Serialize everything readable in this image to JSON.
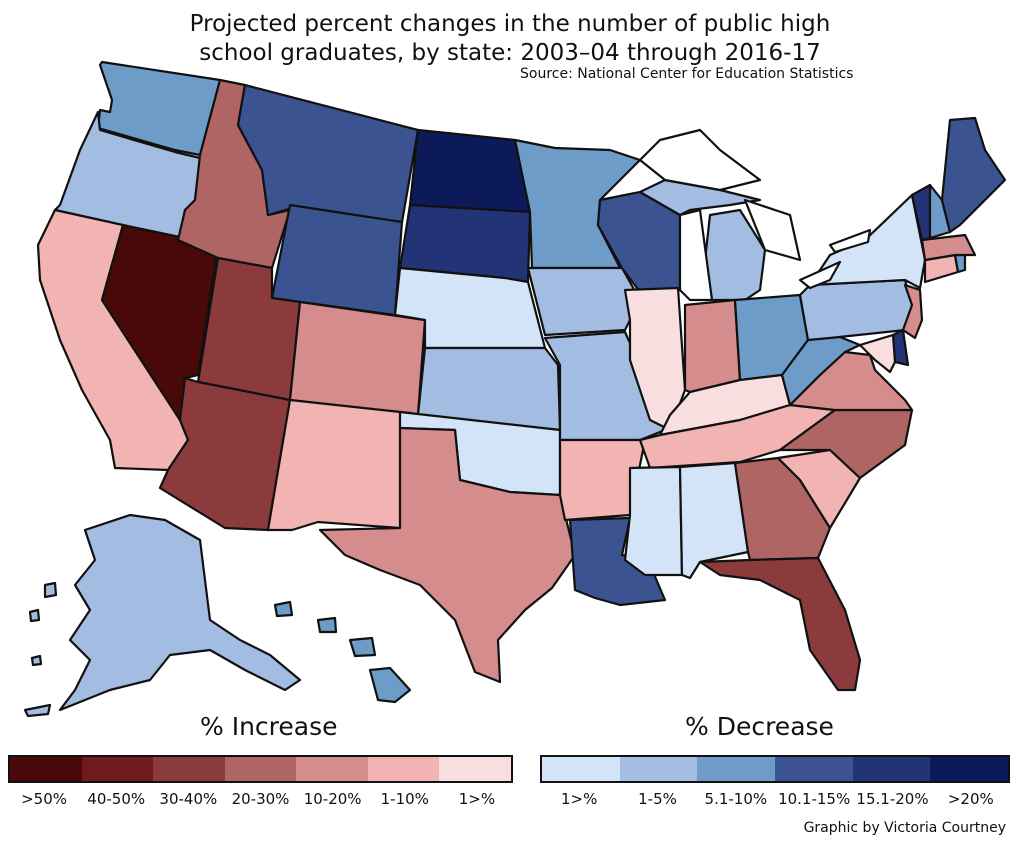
{
  "title_line1": "Projected percent changes in the number of public high",
  "title_line2": "school graduates, by state: 2003–04 through 2016-17",
  "source": "Source: National Center for Education Statistics",
  "credit": "Graphic by Victoria Courtney",
  "colors": {
    "inc_gt50": "#4a0909",
    "inc_40_50": "#6f1b1d",
    "inc_30_40": "#8c3b3d",
    "inc_20_30": "#b06565",
    "inc_10_20": "#d48c8c",
    "inc_1_10": "#f2b3b3",
    "inc_lt1": "#f8dede",
    "dec_lt1": "#d3e3f8",
    "dec_1_5": "#a3bce2",
    "dec_5_10": "#6d9cc9",
    "dec_10_15": "#3b5390",
    "dec_15_20": "#233476",
    "dec_gt20": "#0c1a59",
    "water": "#ffffff"
  },
  "legend_increase": {
    "title": "% Increase",
    "items": [
      {
        "label": ">50%",
        "color": "#4a0909"
      },
      {
        "label": "40-50%",
        "color": "#6f1b1d"
      },
      {
        "label": "30-40%",
        "color": "#8c3b3d"
      },
      {
        "label": "20-30%",
        "color": "#b06565"
      },
      {
        "label": "10-20%",
        "color": "#d48c8c"
      },
      {
        "label": "1-10%",
        "color": "#f2b3b3"
      },
      {
        "label": "1>%",
        "color": "#f8dede"
      }
    ]
  },
  "legend_decrease": {
    "title": "% Decrease",
    "items": [
      {
        "label": "1>%",
        "color": "#d3e3f8"
      },
      {
        "label": "1-5%",
        "color": "#a3bce2"
      },
      {
        "label": "5.1-10%",
        "color": "#6d9cc9"
      },
      {
        "label": "10.1-15%",
        "color": "#3b5390"
      },
      {
        "label": "15.1-20%",
        "color": "#233476"
      },
      {
        "label": ">20%",
        "color": "#0c1a59"
      }
    ]
  },
  "states": [
    {
      "name": "WA",
      "category": "dec_5_10"
    },
    {
      "name": "OR",
      "category": "dec_1_5"
    },
    {
      "name": "CA",
      "category": "inc_1_10"
    },
    {
      "name": "NV",
      "category": "inc_gt50"
    },
    {
      "name": "ID",
      "category": "inc_20_30"
    },
    {
      "name": "MT",
      "category": "dec_10_15"
    },
    {
      "name": "WY",
      "category": "dec_10_15"
    },
    {
      "name": "UT",
      "category": "inc_30_40"
    },
    {
      "name": "AZ",
      "category": "inc_30_40"
    },
    {
      "name": "CO",
      "category": "inc_10_20"
    },
    {
      "name": "NM",
      "category": "inc_1_10"
    },
    {
      "name": "ND",
      "category": "dec_gt20"
    },
    {
      "name": "SD",
      "category": "dec_15_20"
    },
    {
      "name": "NE",
      "category": "dec_lt1"
    },
    {
      "name": "KS",
      "category": "dec_1_5"
    },
    {
      "name": "OK",
      "category": "dec_lt1"
    },
    {
      "name": "TX",
      "category": "inc_10_20"
    },
    {
      "name": "MN",
      "category": "dec_5_10"
    },
    {
      "name": "IA",
      "category": "dec_1_5"
    },
    {
      "name": "MO",
      "category": "dec_1_5"
    },
    {
      "name": "AR",
      "category": "inc_1_10"
    },
    {
      "name": "LA",
      "category": "dec_10_15"
    },
    {
      "name": "WI",
      "category": "dec_10_15"
    },
    {
      "name": "IL",
      "category": "inc_lt1"
    },
    {
      "name": "MI",
      "category": "dec_1_5"
    },
    {
      "name": "IN",
      "category": "inc_10_20"
    },
    {
      "name": "OH",
      "category": "dec_5_10"
    },
    {
      "name": "KY",
      "category": "inc_lt1"
    },
    {
      "name": "TN",
      "category": "inc_1_10"
    },
    {
      "name": "MS",
      "category": "dec_lt1"
    },
    {
      "name": "AL",
      "category": "dec_lt1"
    },
    {
      "name": "GA",
      "category": "inc_20_30"
    },
    {
      "name": "FL",
      "category": "inc_30_40"
    },
    {
      "name": "SC",
      "category": "inc_1_10"
    },
    {
      "name": "NC",
      "category": "inc_20_30"
    },
    {
      "name": "VA",
      "category": "inc_10_20"
    },
    {
      "name": "WV",
      "category": "dec_5_10"
    },
    {
      "name": "PA",
      "category": "dec_1_5"
    },
    {
      "name": "NY",
      "category": "dec_lt1"
    },
    {
      "name": "NJ",
      "category": "inc_10_20"
    },
    {
      "name": "DE",
      "category": "dec_15_20"
    },
    {
      "name": "MD",
      "category": "inc_lt1"
    },
    {
      "name": "CT",
      "category": "inc_1_10"
    },
    {
      "name": "RI",
      "category": "dec_5_10"
    },
    {
      "name": "MA",
      "category": "inc_10_20"
    },
    {
      "name": "VT",
      "category": "dec_15_20"
    },
    {
      "name": "NH",
      "category": "dec_5_10"
    },
    {
      "name": "ME",
      "category": "dec_10_15"
    },
    {
      "name": "AK",
      "category": "dec_1_5"
    },
    {
      "name": "HI",
      "category": "dec_5_10"
    }
  ]
}
